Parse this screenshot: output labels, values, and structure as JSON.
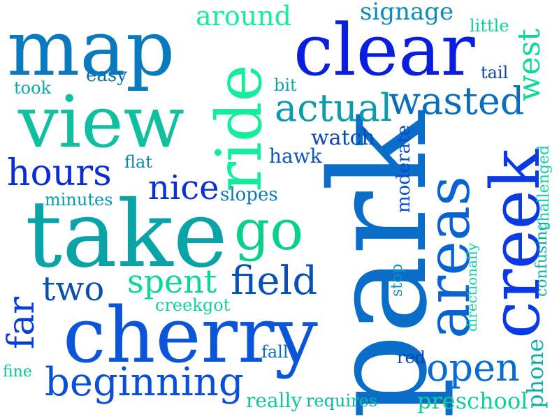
{
  "words": [
    {
      "id": "park",
      "text": "park",
      "color": "#0a6dc7",
      "rotated": true
    },
    {
      "id": "take",
      "text": "take",
      "color": "#0aa3a8",
      "rotated": false
    },
    {
      "id": "cherry",
      "text": "cherry",
      "color": "#0a55d9",
      "rotated": false
    },
    {
      "id": "clear",
      "text": "clear",
      "color": "#0a1ee0",
      "rotated": false
    },
    {
      "id": "map",
      "text": "map",
      "color": "#0a7abf",
      "rotated": false
    },
    {
      "id": "view",
      "text": "view",
      "color": "#0fbfa0",
      "rotated": false
    },
    {
      "id": "creek",
      "text": "creek",
      "color": "#0a3ae6",
      "rotated": true
    },
    {
      "id": "areas",
      "text": "areas",
      "color": "#0a63d2",
      "rotated": true
    },
    {
      "id": "ride",
      "text": "ride",
      "color": "#12ee9b",
      "rotated": true
    },
    {
      "id": "go",
      "text": "go",
      "color": "#0ad08f",
      "rotated": false
    },
    {
      "id": "beginning",
      "text": "beginning",
      "color": "#0a4fd6",
      "rotated": false
    },
    {
      "id": "hours",
      "text": "hours",
      "color": "#0a2cd6",
      "rotated": false
    },
    {
      "id": "actual",
      "text": "actual",
      "color": "#0a9cae",
      "rotated": false
    },
    {
      "id": "wasted",
      "text": "wasted",
      "color": "#0a6ebd",
      "rotated": false
    },
    {
      "id": "field",
      "text": "field",
      "color": "#0a4fb8",
      "rotated": false
    },
    {
      "id": "open",
      "text": "open",
      "color": "#0a6bd0",
      "rotated": false
    },
    {
      "id": "two",
      "text": "two",
      "color": "#0a4fb0",
      "rotated": false
    },
    {
      "id": "spent",
      "text": "spent",
      "color": "#0ad897",
      "rotated": false
    },
    {
      "id": "nice",
      "text": "nice",
      "color": "#0a2fd8",
      "rotated": false
    },
    {
      "id": "far",
      "text": "far",
      "color": "#0a3fd6",
      "rotated": true
    },
    {
      "id": "around",
      "text": "around",
      "color": "#18ed9b",
      "rotated": false
    },
    {
      "id": "signage",
      "text": "signage",
      "color": "#0a8aba",
      "rotated": false
    },
    {
      "id": "west",
      "text": "west",
      "color": "#0fd895",
      "rotated": true
    },
    {
      "id": "watch",
      "text": "watch",
      "color": "#0a4ab8",
      "rotated": false
    },
    {
      "id": "preschool",
      "text": "preschool",
      "color": "#0fd095",
      "rotated": false
    },
    {
      "id": "phone",
      "text": "phone",
      "color": "#0ab0a8",
      "rotated": true
    },
    {
      "id": "really",
      "text": "really",
      "color": "#0fc898",
      "rotated": false
    },
    {
      "id": "requires",
      "text": "requires",
      "color": "#0ab8a4",
      "rotated": false
    },
    {
      "id": "easy",
      "text": "easy",
      "color": "#0a6eb0",
      "rotated": false
    },
    {
      "id": "took",
      "text": "took",
      "color": "#0aa6ac",
      "rotated": false
    },
    {
      "id": "little",
      "text": "little",
      "color": "#0fd49a",
      "rotated": false
    },
    {
      "id": "tail",
      "text": "tail",
      "color": "#0a44b8",
      "rotated": false
    },
    {
      "id": "bit",
      "text": "bit",
      "color": "#0aa8a8",
      "rotated": false
    },
    {
      "id": "hawk",
      "text": "hawk",
      "color": "#0a5ab8",
      "rotated": false
    },
    {
      "id": "flat",
      "text": "flat",
      "color": "#0a8ab0",
      "rotated": false
    },
    {
      "id": "minutes",
      "text": "minutes",
      "color": "#0a9ab0",
      "rotated": false
    },
    {
      "id": "slopes",
      "text": "slopes",
      "color": "#0a78b5",
      "rotated": false
    },
    {
      "id": "moderate",
      "text": "moderate",
      "color": "#0a4ad0",
      "rotated": true
    },
    {
      "id": "challenged",
      "text": "challenged",
      "color": "#0fd0a0",
      "rotated": true
    },
    {
      "id": "confusing",
      "text": "confusing",
      "color": "#0ab0a8",
      "rotated": true
    },
    {
      "id": "directionally",
      "text": "directionally",
      "color": "#0fd0a0",
      "rotated": true
    },
    {
      "id": "stop",
      "text": "stop",
      "color": "#0a90c0",
      "rotated": true
    },
    {
      "id": "creekgot",
      "text": "creekgot",
      "color": "#0fd49a",
      "rotated": false
    },
    {
      "id": "fall",
      "text": "fall",
      "color": "#0a70b8",
      "rotated": false
    },
    {
      "id": "red",
      "text": "red",
      "color": "#0a3fb8",
      "rotated": false
    },
    {
      "id": "fine",
      "text": "fine",
      "color": "#0fc0a0",
      "rotated": false
    }
  ]
}
